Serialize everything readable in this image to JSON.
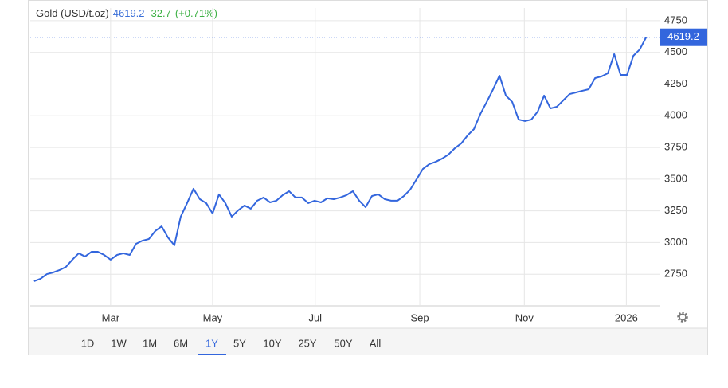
{
  "chart_data": {
    "type": "line",
    "title": "Gold (USD/t.oz)",
    "price": 4619.2,
    "change": "32.7",
    "change_pct": "(+0.71%)",
    "series": [
      {
        "name": "Gold",
        "color": "#3366dd",
        "values": [
          2695,
          2714,
          2751,
          2764,
          2783,
          2808,
          2865,
          2915,
          2890,
          2927,
          2927,
          2902,
          2865,
          2902,
          2915,
          2902,
          2990,
          3015,
          3028,
          3091,
          3128,
          3040,
          2978,
          3204,
          3311,
          3424,
          3342,
          3311,
          3229,
          3380,
          3311,
          3204,
          3254,
          3292,
          3267,
          3330,
          3355,
          3317,
          3330,
          3374,
          3405,
          3355,
          3355,
          3311,
          3330,
          3317,
          3349,
          3342,
          3355,
          3374,
          3405,
          3330,
          3279,
          3367,
          3380,
          3342,
          3330,
          3330,
          3367,
          3418,
          3499,
          3581,
          3619,
          3637,
          3662,
          3694,
          3744,
          3782,
          3845,
          3895,
          4014,
          4109,
          4209,
          4316,
          4159,
          4109,
          3970,
          3958,
          3970,
          4033,
          4159,
          4058,
          4071,
          4121,
          4171,
          4184,
          4197,
          4209,
          4297,
          4310,
          4335,
          4486,
          4322,
          4322,
          4473,
          4523,
          4619.2
        ]
      }
    ],
    "xlim": [
      -0.6,
      98.1
    ],
    "xticks": [
      {
        "value": 12,
        "label": "Mar"
      },
      {
        "value": 28,
        "label": "May"
      },
      {
        "value": 44.1,
        "label": "Jul"
      },
      {
        "value": 60.5,
        "label": "Sep"
      },
      {
        "value": 76.9,
        "label": "Nov"
      },
      {
        "value": 92.9,
        "label": "2026"
      }
    ],
    "ylim": [
      2500,
      4850
    ],
    "yticks": [
      2750,
      3000,
      3250,
      3500,
      3750,
      4000,
      4250,
      4500,
      4750
    ],
    "grid": true
  },
  "toolbar": {
    "ranges": [
      "1D",
      "1W",
      "1M",
      "6M",
      "1Y",
      "5Y",
      "10Y",
      "25Y",
      "50Y",
      "All"
    ],
    "active": "1Y"
  }
}
